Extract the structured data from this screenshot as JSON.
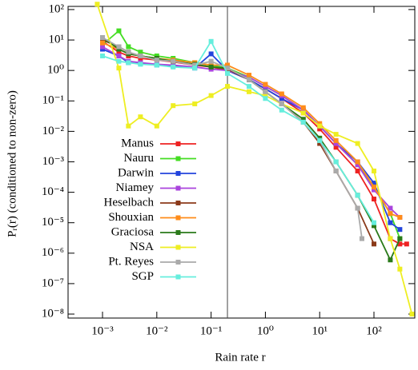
{
  "chart_data": {
    "type": "line",
    "xlabel": "Rain rate r",
    "ylabel": "Pᵣ(r) (conditioned to non-zero)",
    "xscale": "log",
    "yscale": "log",
    "xlim": [
      0.000232,
      565
    ],
    "ylim": [
      7.4e-09,
      127
    ],
    "xticks": [
      {
        "value": 0.001,
        "label": "10⁻³"
      },
      {
        "value": 0.01,
        "label": "10⁻²"
      },
      {
        "value": 0.1,
        "label": "10⁻¹"
      },
      {
        "value": 1,
        "label": "10⁰"
      },
      {
        "value": 10,
        "label": "10¹"
      },
      {
        "value": 100,
        "label": "10²"
      }
    ],
    "yticks": [
      {
        "value": 1e-08,
        "label": "10⁻⁸"
      },
      {
        "value": 1e-07,
        "label": "10⁻⁷"
      },
      {
        "value": 1e-06,
        "label": "10⁻⁶"
      },
      {
        "value": 1e-05,
        "label": "10⁻⁵"
      },
      {
        "value": 0.0001,
        "label": "10⁻⁴"
      },
      {
        "value": 0.001,
        "label": "10⁻³"
      },
      {
        "value": 0.01,
        "label": "10⁻²"
      },
      {
        "value": 0.1,
        "label": "10⁻¹"
      },
      {
        "value": 1,
        "label": "10⁰"
      },
      {
        "value": 10,
        "label": "10¹"
      },
      {
        "value": 100,
        "label": "10²"
      }
    ],
    "vline": 0.2,
    "legend": "left",
    "series": [
      {
        "name": "Manus",
        "color": "#ee2222",
        "x": [
          0.001,
          0.002,
          0.003,
          0.005,
          0.01,
          0.02,
          0.05,
          0.1,
          0.2,
          0.5,
          1,
          2,
          5,
          10,
          20,
          50,
          100,
          200,
          300,
          400
        ],
        "values": [
          9,
          4,
          3,
          2.5,
          2.2,
          1.9,
          1.5,
          1.3,
          1.0,
          0.5,
          0.25,
          0.12,
          0.04,
          0.012,
          0.003,
          0.0005,
          6e-05,
          3e-06,
          2e-06,
          2e-06
        ]
      },
      {
        "name": "Nauru",
        "color": "#44dd22",
        "x": [
          0.001,
          0.002,
          0.003,
          0.005,
          0.01,
          0.02,
          0.05,
          0.1,
          0.2,
          0.5,
          1,
          2,
          5,
          10,
          20,
          50,
          100,
          200,
          300
        ],
        "values": [
          7,
          20,
          6,
          4,
          3,
          2.5,
          1.8,
          1.5,
          1.2,
          0.6,
          0.3,
          0.15,
          0.05,
          0.015,
          0.004,
          0.0008,
          0.00015,
          2e-05,
          3e-06
        ]
      },
      {
        "name": "Darwin",
        "color": "#2244dd",
        "x": [
          0.001,
          0.002,
          0.003,
          0.005,
          0.01,
          0.02,
          0.05,
          0.1,
          0.2,
          0.5,
          1,
          2,
          5,
          10,
          20,
          50,
          100,
          200,
          300
        ],
        "values": [
          5,
          3,
          1.8,
          1.7,
          1.5,
          1.4,
          1.2,
          3.5,
          1.0,
          0.5,
          0.25,
          0.12,
          0.05,
          0.015,
          0.004,
          0.001,
          0.0002,
          1e-05,
          6e-06
        ]
      },
      {
        "name": "Niamey",
        "color": "#aa44dd",
        "x": [
          0.001,
          0.002,
          0.003,
          0.005,
          0.01,
          0.02,
          0.05,
          0.1,
          0.2,
          0.5,
          1,
          2,
          5,
          10,
          20,
          50,
          100,
          200,
          300
        ],
        "values": [
          6,
          3,
          2,
          1.8,
          1.6,
          1.5,
          1.3,
          1.1,
          1.0,
          0.6,
          0.3,
          0.15,
          0.05,
          0.015,
          0.004,
          0.0008,
          0.00012,
          3e-05,
          1.5e-05
        ]
      },
      {
        "name": "Heselbach",
        "color": "#8b3a1a",
        "x": [
          0.001,
          0.002,
          0.003,
          0.005,
          0.01,
          0.02,
          0.05,
          0.1,
          0.2,
          0.5,
          1,
          2,
          5,
          10,
          20,
          50,
          100
        ],
        "values": [
          10,
          6,
          4,
          3,
          2.5,
          2,
          1.6,
          1.3,
          1.1,
          0.5,
          0.2,
          0.08,
          0.02,
          0.004,
          0.0005,
          3e-05,
          2e-06
        ]
      },
      {
        "name": "Shouxian",
        "color": "#ff8c1a",
        "x": [
          0.001,
          0.002,
          0.003,
          0.005,
          0.01,
          0.02,
          0.05,
          0.1,
          0.2,
          0.5,
          1,
          2,
          5,
          10,
          20,
          50,
          100,
          200,
          300
        ],
        "values": [
          8,
          5,
          3.5,
          3,
          2.5,
          2.2,
          1.8,
          1.5,
          1.5,
          0.7,
          0.35,
          0.17,
          0.06,
          0.018,
          0.005,
          0.001,
          0.00015,
          2e-05,
          1.5e-05
        ]
      },
      {
        "name": "Graciosa",
        "color": "#2a7a1a",
        "x": [
          0.001,
          0.002,
          0.003,
          0.005,
          0.01,
          0.02,
          0.05,
          0.1,
          0.2,
          0.5,
          1,
          2,
          5,
          10,
          20,
          50,
          100,
          200,
          300
        ],
        "values": [
          12,
          5,
          3.5,
          3,
          2.5,
          2,
          1.6,
          1.3,
          1.2,
          0.5,
          0.2,
          0.08,
          0.025,
          0.006,
          0.001,
          8e-05,
          8e-06,
          6e-07,
          3e-06
        ]
      },
      {
        "name": "NSA",
        "color": "#eeee22",
        "x": [
          0.0008,
          0.002,
          0.003,
          0.005,
          0.01,
          0.02,
          0.05,
          0.1,
          0.2,
          0.5,
          1,
          2,
          5,
          10,
          20,
          50,
          100,
          200,
          300,
          500
        ],
        "values": [
          150,
          1.2,
          0.015,
          0.03,
          0.015,
          0.07,
          0.08,
          0.15,
          0.3,
          0.2,
          0.15,
          0.08,
          0.04,
          0.015,
          0.008,
          0.004,
          0.0005,
          3e-06,
          3e-07,
          1e-08
        ]
      },
      {
        "name": "Pt. Reyes",
        "color": "#aaaaaa",
        "x": [
          0.001,
          0.002,
          0.003,
          0.005,
          0.01,
          0.02,
          0.05,
          0.1,
          0.2,
          0.5,
          1,
          2,
          5,
          10,
          20,
          50,
          60
        ],
        "values": [
          12,
          6,
          4,
          3,
          2.2,
          2,
          1.5,
          2,
          1.2,
          0.5,
          0.2,
          0.08,
          0.02,
          0.005,
          0.0005,
          3e-05,
          3e-06
        ]
      },
      {
        "name": "SGP",
        "color": "#66eedd",
        "x": [
          0.001,
          0.002,
          0.003,
          0.005,
          0.01,
          0.02,
          0.05,
          0.1,
          0.2,
          0.5,
          1,
          2,
          5,
          10,
          20,
          50,
          100
        ],
        "values": [
          3,
          2,
          1.8,
          1.6,
          1.5,
          1.3,
          1.2,
          9,
          0.8,
          0.3,
          0.12,
          0.05,
          0.02,
          0.005,
          0.001,
          8e-05,
          1e-05
        ]
      }
    ]
  }
}
